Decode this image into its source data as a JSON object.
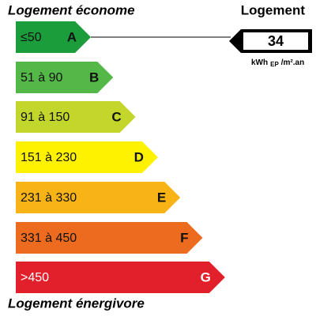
{
  "header": {
    "left": "Logement économe",
    "right": "Logement"
  },
  "footer": "Logement énergivore",
  "bands": [
    {
      "range": "≤50",
      "letter": "A",
      "color": "#1c9d3c",
      "text_color": "#111"
    },
    {
      "range": "51 à 90",
      "letter": "B",
      "color": "#54b848",
      "text_color": "#111"
    },
    {
      "range": "91 à 150",
      "letter": "C",
      "color": "#c2d62c",
      "text_color": "#111"
    },
    {
      "range": "151 à 230",
      "letter": "D",
      "color": "#fff200",
      "text_color": "#111"
    },
    {
      "range": "231 à 330",
      "letter": "E",
      "color": "#f8b417",
      "text_color": "#111"
    },
    {
      "range": "331 à 450",
      "letter": "F",
      "color": "#ec6b1f",
      "text_color": "#111"
    },
    {
      "range": ">450",
      "letter": "G",
      "color": "#e2202b",
      "text_color": "#fff"
    }
  ],
  "indicator": {
    "value": "34",
    "unit": "kWh",
    "unit_sub": "EP",
    "unit_suffix": "/m².an"
  }
}
